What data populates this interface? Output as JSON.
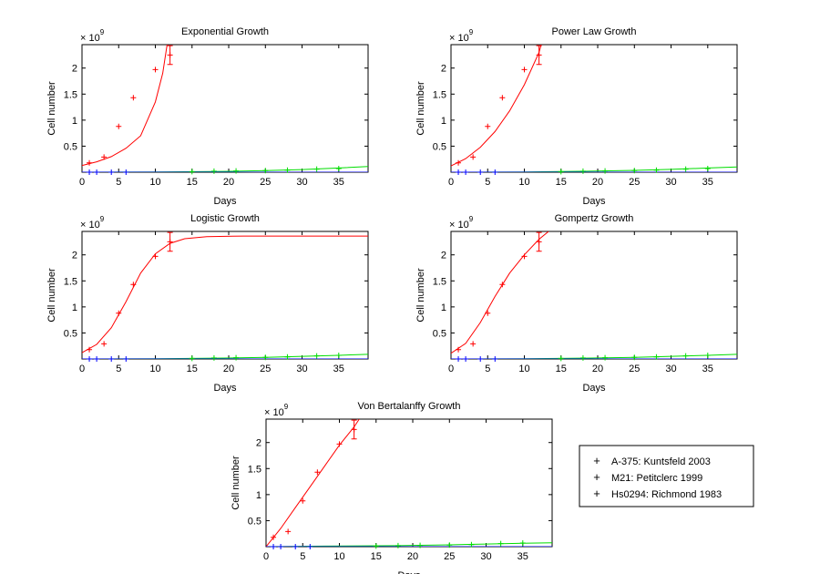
{
  "chart_data": [
    {
      "type": "line",
      "title": "Exponential Growth",
      "xlabel": "Days",
      "ylabel": "Cell number",
      "y_multiplier": "× 10^9",
      "xlim": [
        0,
        39
      ],
      "ylim": [
        0,
        2.45
      ],
      "xticks": [
        0,
        5,
        10,
        15,
        20,
        25,
        30,
        35
      ],
      "yticks": [
        0.5,
        1,
        1.5,
        2
      ],
      "grid": false,
      "series": [
        {
          "name": "A-375: Kuntsfeld 2003",
          "color": "#ff0000",
          "points": [
            [
              1,
              0.18
            ],
            [
              3,
              0.29
            ],
            [
              5,
              0.88
            ],
            [
              7,
              1.43
            ],
            [
              10,
              1.97
            ],
            [
              12,
              2.25
            ]
          ],
          "error_bars": [
            [
              12,
              2.07,
              2.43
            ]
          ],
          "fit": [
            [
              0,
              0.13
            ],
            [
              2,
              0.2
            ],
            [
              4,
              0.3
            ],
            [
              6,
              0.46
            ],
            [
              8,
              0.7
            ],
            [
              10,
              1.35
            ],
            [
              11,
              1.9
            ],
            [
              11.6,
              2.45
            ]
          ]
        },
        {
          "name": "M21: Petitclerc 1999",
          "color": "#00ff00",
          "points": [
            [
              15,
              0.01
            ],
            [
              18,
              0.02
            ],
            [
              21,
              0.025
            ],
            [
              25,
              0.03
            ],
            [
              28,
              0.04
            ],
            [
              32,
              0.06
            ],
            [
              35,
              0.07
            ]
          ],
          "fit": [
            [
              0,
              0.0
            ],
            [
              10,
              0.004
            ],
            [
              18,
              0.012
            ],
            [
              25,
              0.03
            ],
            [
              30,
              0.05
            ],
            [
              35,
              0.08
            ],
            [
              39,
              0.11
            ]
          ]
        },
        {
          "name": "Hs0294: Richmond 1983",
          "color": "#0000ff",
          "points": [
            [
              1,
              0.0
            ],
            [
              2,
              0.0
            ],
            [
              4,
              0.0
            ],
            [
              6,
              0.0
            ]
          ],
          "fit": [
            [
              0,
              0.0
            ],
            [
              39,
              0.0
            ]
          ]
        }
      ]
    },
    {
      "type": "line",
      "title": "Power Law Growth",
      "xlabel": "Days",
      "ylabel": "Cell number",
      "y_multiplier": "× 10^9",
      "xlim": [
        0,
        39
      ],
      "ylim": [
        0,
        2.45
      ],
      "xticks": [
        0,
        5,
        10,
        15,
        20,
        25,
        30,
        35
      ],
      "yticks": [
        0.5,
        1,
        1.5,
        2
      ],
      "grid": false,
      "series": [
        {
          "name": "A-375: Kuntsfeld 2003",
          "color": "#ff0000",
          "points": [
            [
              1,
              0.18
            ],
            [
              3,
              0.29
            ],
            [
              5,
              0.88
            ],
            [
              7,
              1.43
            ],
            [
              10,
              1.97
            ],
            [
              12,
              2.25
            ]
          ],
          "error_bars": [
            [
              12,
              2.07,
              2.43
            ]
          ],
          "fit": [
            [
              0,
              0.12
            ],
            [
              2,
              0.26
            ],
            [
              4,
              0.48
            ],
            [
              6,
              0.78
            ],
            [
              8,
              1.18
            ],
            [
              10,
              1.68
            ],
            [
              12,
              2.3
            ],
            [
              12.3,
              2.45
            ]
          ]
        },
        {
          "name": "M21: Petitclerc 1999",
          "color": "#00ff00",
          "points": [
            [
              15,
              0.01
            ],
            [
              18,
              0.02
            ],
            [
              21,
              0.025
            ],
            [
              25,
              0.03
            ],
            [
              28,
              0.04
            ],
            [
              32,
              0.06
            ],
            [
              35,
              0.07
            ]
          ],
          "fit": [
            [
              0,
              0.0
            ],
            [
              10,
              0.006
            ],
            [
              18,
              0.018
            ],
            [
              25,
              0.035
            ],
            [
              30,
              0.055
            ],
            [
              35,
              0.08
            ],
            [
              39,
              0.1
            ]
          ]
        },
        {
          "name": "Hs0294: Richmond 1983",
          "color": "#0000ff",
          "points": [
            [
              1,
              0.0
            ],
            [
              2,
              0.0
            ],
            [
              4,
              0.0
            ],
            [
              6,
              0.0
            ]
          ],
          "fit": [
            [
              0,
              0.0
            ],
            [
              39,
              0.0
            ]
          ]
        }
      ]
    },
    {
      "type": "line",
      "title": "Logistic Growth",
      "xlabel": "Days",
      "ylabel": "Cell number",
      "y_multiplier": "× 10^9",
      "xlim": [
        0,
        39
      ],
      "ylim": [
        0,
        2.45
      ],
      "xticks": [
        0,
        5,
        10,
        15,
        20,
        25,
        30,
        35
      ],
      "yticks": [
        0.5,
        1,
        1.5,
        2
      ],
      "grid": false,
      "series": [
        {
          "name": "A-375: Kuntsfeld 2003",
          "color": "#ff0000",
          "points": [
            [
              1,
              0.18
            ],
            [
              3,
              0.29
            ],
            [
              5,
              0.88
            ],
            [
              7,
              1.43
            ],
            [
              10,
              1.97
            ],
            [
              12,
              2.25
            ]
          ],
          "error_bars": [
            [
              12,
              2.07,
              2.43
            ]
          ],
          "fit": [
            [
              0,
              0.12
            ],
            [
              2,
              0.28
            ],
            [
              4,
              0.6
            ],
            [
              6,
              1.1
            ],
            [
              8,
              1.65
            ],
            [
              10,
              2.02
            ],
            [
              12,
              2.22
            ],
            [
              14,
              2.31
            ],
            [
              17,
              2.35
            ],
            [
              22,
              2.36
            ],
            [
              39,
              2.36
            ]
          ]
        },
        {
          "name": "M21: Petitclerc 1999",
          "color": "#00ff00",
          "points": [
            [
              15,
              0.01
            ],
            [
              18,
              0.02
            ],
            [
              21,
              0.025
            ],
            [
              25,
              0.03
            ],
            [
              28,
              0.04
            ],
            [
              32,
              0.06
            ],
            [
              35,
              0.07
            ]
          ],
          "fit": [
            [
              0,
              0.0
            ],
            [
              10,
              0.005
            ],
            [
              18,
              0.015
            ],
            [
              25,
              0.03
            ],
            [
              30,
              0.05
            ],
            [
              35,
              0.07
            ],
            [
              39,
              0.09
            ]
          ]
        },
        {
          "name": "Hs0294: Richmond 1983",
          "color": "#0000ff",
          "points": [
            [
              1,
              0.0
            ],
            [
              2,
              0.0
            ],
            [
              4,
              0.0
            ],
            [
              6,
              0.0
            ]
          ],
          "fit": [
            [
              0,
              0.0
            ],
            [
              39,
              0.0
            ]
          ]
        }
      ]
    },
    {
      "type": "line",
      "title": "Gompertz Growth",
      "xlabel": "Days",
      "ylabel": "Cell number",
      "y_multiplier": "× 10^9",
      "xlim": [
        0,
        39
      ],
      "ylim": [
        0,
        2.45
      ],
      "xticks": [
        0,
        5,
        10,
        15,
        20,
        25,
        30,
        35
      ],
      "yticks": [
        0.5,
        1,
        1.5,
        2
      ],
      "grid": false,
      "series": [
        {
          "name": "A-375: Kuntsfeld 2003",
          "color": "#ff0000",
          "points": [
            [
              1,
              0.18
            ],
            [
              3,
              0.29
            ],
            [
              5,
              0.88
            ],
            [
              7,
              1.43
            ],
            [
              10,
              1.97
            ],
            [
              12,
              2.25
            ]
          ],
          "error_bars": [
            [
              12,
              2.07,
              2.43
            ]
          ],
          "fit": [
            [
              0,
              0.11
            ],
            [
              2,
              0.3
            ],
            [
              4,
              0.7
            ],
            [
              6,
              1.2
            ],
            [
              8,
              1.65
            ],
            [
              10,
              2.0
            ],
            [
              12,
              2.3
            ],
            [
              13.3,
              2.45
            ]
          ]
        },
        {
          "name": "M21: Petitclerc 1999",
          "color": "#00ff00",
          "points": [
            [
              15,
              0.01
            ],
            [
              18,
              0.02
            ],
            [
              21,
              0.025
            ],
            [
              25,
              0.03
            ],
            [
              28,
              0.04
            ],
            [
              32,
              0.06
            ],
            [
              35,
              0.07
            ]
          ],
          "fit": [
            [
              0,
              0.0
            ],
            [
              10,
              0.006
            ],
            [
              18,
              0.016
            ],
            [
              25,
              0.032
            ],
            [
              30,
              0.05
            ],
            [
              35,
              0.07
            ],
            [
              39,
              0.09
            ]
          ]
        },
        {
          "name": "Hs0294: Richmond 1983",
          "color": "#0000ff",
          "points": [
            [
              1,
              0.0
            ],
            [
              2,
              0.0
            ],
            [
              4,
              0.0
            ],
            [
              6,
              0.0
            ]
          ],
          "fit": [
            [
              0,
              0.0
            ],
            [
              39,
              0.0
            ]
          ]
        }
      ]
    },
    {
      "type": "line",
      "title": "Von Bertalanffy Growth",
      "xlabel": "Days",
      "ylabel": "Cell number",
      "y_multiplier": "× 10^9",
      "xlim": [
        0,
        39
      ],
      "ylim": [
        0,
        2.45
      ],
      "xticks": [
        0,
        5,
        10,
        15,
        20,
        25,
        30,
        35
      ],
      "yticks": [
        0.5,
        1,
        1.5,
        2
      ],
      "grid": false,
      "series": [
        {
          "name": "A-375: Kuntsfeld 2003",
          "color": "#ff0000",
          "points": [
            [
              1,
              0.18
            ],
            [
              3,
              0.29
            ],
            [
              5,
              0.88
            ],
            [
              7,
              1.43
            ],
            [
              10,
              1.97
            ],
            [
              12,
              2.25
            ]
          ],
          "error_bars": [
            [
              12,
              2.07,
              2.43
            ]
          ],
          "fit": [
            [
              0,
              0.0
            ],
            [
              2,
              0.35
            ],
            [
              4,
              0.75
            ],
            [
              6,
              1.15
            ],
            [
              8,
              1.55
            ],
            [
              10,
              1.95
            ],
            [
              12,
              2.3
            ],
            [
              12.7,
              2.45
            ]
          ]
        },
        {
          "name": "M21: Petitclerc 1999",
          "color": "#00ff00",
          "points": [
            [
              15,
              0.01
            ],
            [
              18,
              0.02
            ],
            [
              21,
              0.025
            ],
            [
              25,
              0.03
            ],
            [
              28,
              0.04
            ],
            [
              32,
              0.06
            ],
            [
              35,
              0.07
            ]
          ],
          "fit": [
            [
              0,
              0.0
            ],
            [
              8,
              0.01
            ],
            [
              18,
              0.02
            ],
            [
              25,
              0.035
            ],
            [
              30,
              0.05
            ],
            [
              35,
              0.065
            ],
            [
              39,
              0.075
            ]
          ]
        },
        {
          "name": "Hs0294: Richmond 1983",
          "color": "#0000ff",
          "points": [
            [
              1,
              0.0
            ],
            [
              2,
              0.0
            ],
            [
              4,
              0.0
            ],
            [
              6,
              0.0
            ]
          ],
          "fit": [
            [
              0,
              0.0
            ],
            [
              39,
              0.0
            ]
          ]
        }
      ]
    }
  ],
  "legend": {
    "placement": "bottom-right",
    "entries": [
      {
        "label": "A-375: Kuntsfeld 2003",
        "color": "#ff0000",
        "marker": "+"
      },
      {
        "label": "M21: Petitclerc 1999",
        "color": "#00ff00",
        "marker": "+"
      },
      {
        "label": "Hs0294: Richmond 1983",
        "color": "#0000ff",
        "marker": "+"
      }
    ]
  }
}
